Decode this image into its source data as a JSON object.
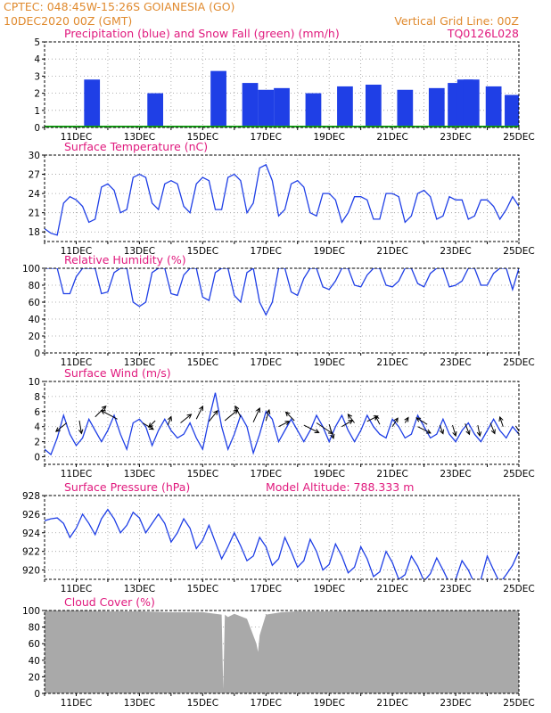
{
  "header": {
    "source_loc": "CPTEC:   048:45W-15:26S   GOIANESIA (GO)",
    "init": "10DEC2020 00Z (GMT)",
    "grid_note": "Vertical Grid Line: 00Z",
    "code": "TQ0126L028"
  },
  "colors": {
    "header": "#e08a2e",
    "title": "#e0197d",
    "series": "#1f3fe6",
    "snow": "#13a313",
    "cloud": "#a9a9a9",
    "arrow": "#000000"
  },
  "x_ticks": [
    "11DEC",
    "13DEC",
    "15DEC",
    "17DEC",
    "19DEC",
    "21DEC",
    "23DEC",
    "25DEC"
  ],
  "chart_data": [
    {
      "id": "precip",
      "type": "bar",
      "title": "Precipitation (blue) and Snow Fall (green) (mm/h)",
      "ylim": [
        0,
        5
      ],
      "yticks": [
        0,
        1,
        2,
        3,
        4,
        5
      ],
      "xlim": [
        10,
        25
      ],
      "x": [
        11.5,
        13.5,
        15.5,
        16.5,
        17.0,
        17.5,
        18.5,
        19.5,
        20.4,
        21.4,
        22.4,
        23.0,
        23.3,
        23.5,
        24.2,
        24.8
      ],
      "series": [
        {
          "name": "Precipitation",
          "values": [
            2.8,
            2.0,
            3.3,
            2.6,
            2.2,
            2.3,
            2.0,
            2.4,
            2.5,
            2.2,
            2.3,
            2.6,
            2.8,
            2.8,
            2.4,
            1.9
          ]
        },
        {
          "name": "Snow Fall",
          "values": [
            0,
            0,
            0,
            0,
            0,
            0,
            0,
            0,
            0,
            0,
            0,
            0,
            0,
            0,
            0,
            0
          ]
        }
      ]
    },
    {
      "id": "temp",
      "type": "line",
      "title": "Surface Temperature (nC)",
      "ylim": [
        16.5,
        30
      ],
      "yticks": [
        18,
        21,
        24,
        27,
        30
      ],
      "xlim": [
        10,
        25
      ],
      "x": [
        10.0,
        10.2,
        10.4,
        10.6,
        10.8,
        11.0,
        11.2,
        11.4,
        11.6,
        11.8,
        12.0,
        12.2,
        12.4,
        12.6,
        12.8,
        13.0,
        13.2,
        13.4,
        13.6,
        13.8,
        14.0,
        14.2,
        14.4,
        14.6,
        14.8,
        15.0,
        15.2,
        15.4,
        15.6,
        15.8,
        16.0,
        16.2,
        16.4,
        16.6,
        16.8,
        17.0,
        17.2,
        17.4,
        17.6,
        17.8,
        18.0,
        18.2,
        18.4,
        18.6,
        18.8,
        19.0,
        19.2,
        19.4,
        19.6,
        19.8,
        20.0,
        20.2,
        20.4,
        20.6,
        20.8,
        21.0,
        21.2,
        21.4,
        21.6,
        21.8,
        22.0,
        22.2,
        22.4,
        22.6,
        22.8,
        23.0,
        23.2,
        23.4,
        23.6,
        23.8,
        24.0,
        24.2,
        24.4,
        24.6,
        24.8,
        25.0
      ],
      "series": [
        {
          "name": "",
          "values": [
            18.5,
            17.8,
            17.5,
            22.5,
            23.5,
            23.0,
            22.0,
            19.5,
            20.0,
            25.0,
            25.5,
            24.5,
            21.0,
            21.5,
            26.5,
            27.0,
            26.5,
            22.5,
            21.5,
            25.5,
            26.0,
            25.5,
            22.0,
            21.0,
            25.5,
            26.5,
            26.0,
            21.5,
            21.5,
            26.5,
            27.0,
            26.0,
            21.0,
            22.5,
            28.0,
            28.5,
            26.0,
            20.5,
            21.5,
            25.5,
            26.0,
            25.0,
            21.0,
            20.5,
            24.0,
            24.0,
            23.0,
            19.5,
            21.0,
            23.5,
            23.5,
            23.0,
            20.0,
            20.0,
            24.0,
            24.0,
            23.5,
            19.5,
            20.5,
            24.0,
            24.5,
            23.5,
            20.0,
            20.5,
            23.5,
            23.0,
            23.0,
            20.0,
            20.5,
            23.0,
            23.0,
            22.0,
            20.0,
            21.5,
            23.5,
            22.0
          ]
        }
      ]
    },
    {
      "id": "rh",
      "type": "line",
      "title": "Relative Humidity (%)",
      "ylim": [
        0,
        100
      ],
      "yticks": [
        0,
        20,
        40,
        60,
        80,
        100
      ],
      "xlim": [
        10,
        25
      ],
      "x": [
        10.0,
        10.2,
        10.4,
        10.6,
        10.8,
        11.0,
        11.2,
        11.4,
        11.6,
        11.8,
        12.0,
        12.2,
        12.4,
        12.6,
        12.8,
        13.0,
        13.2,
        13.4,
        13.6,
        13.8,
        14.0,
        14.2,
        14.4,
        14.6,
        14.8,
        15.0,
        15.2,
        15.4,
        15.6,
        15.8,
        16.0,
        16.2,
        16.4,
        16.6,
        16.8,
        17.0,
        17.2,
        17.4,
        17.6,
        17.8,
        18.0,
        18.2,
        18.4,
        18.6,
        18.8,
        19.0,
        19.2,
        19.4,
        19.6,
        19.8,
        20.0,
        20.2,
        20.4,
        20.6,
        20.8,
        21.0,
        21.2,
        21.4,
        21.6,
        21.8,
        22.0,
        22.2,
        22.4,
        22.6,
        22.8,
        23.0,
        23.2,
        23.4,
        23.6,
        23.8,
        24.0,
        24.2,
        24.4,
        24.6,
        24.8,
        25.0
      ],
      "series": [
        {
          "name": "",
          "values": [
            100,
            100,
            100,
            70,
            70,
            90,
            100,
            100,
            100,
            70,
            72,
            95,
            100,
            100,
            60,
            55,
            60,
            95,
            100,
            100,
            70,
            68,
            92,
            100,
            100,
            66,
            62,
            95,
            100,
            100,
            68,
            60,
            95,
            100,
            60,
            45,
            60,
            100,
            100,
            72,
            68,
            88,
            100,
            100,
            78,
            75,
            85,
            100,
            100,
            80,
            78,
            92,
            100,
            100,
            80,
            78,
            85,
            100,
            100,
            82,
            78,
            94,
            100,
            100,
            78,
            80,
            85,
            100,
            100,
            80,
            80,
            94,
            100,
            100,
            75,
            100
          ]
        }
      ]
    },
    {
      "id": "wind",
      "type": "line",
      "title": "Surface Wind (m/s)",
      "ylim": [
        -1,
        10
      ],
      "yticks": [
        0,
        2,
        4,
        6,
        8,
        10
      ],
      "xlim": [
        10,
        25
      ],
      "x": [
        10.0,
        10.2,
        10.4,
        10.6,
        10.8,
        11.0,
        11.2,
        11.4,
        11.6,
        11.8,
        12.0,
        12.2,
        12.4,
        12.6,
        12.8,
        13.0,
        13.2,
        13.4,
        13.6,
        13.8,
        14.0,
        14.2,
        14.4,
        14.6,
        14.8,
        15.0,
        15.2,
        15.4,
        15.6,
        15.8,
        16.0,
        16.2,
        16.4,
        16.6,
        16.8,
        17.0,
        17.2,
        17.4,
        17.6,
        17.8,
        18.0,
        18.2,
        18.4,
        18.6,
        18.8,
        19.0,
        19.2,
        19.4,
        19.6,
        19.8,
        20.0,
        20.2,
        20.4,
        20.6,
        20.8,
        21.0,
        21.2,
        21.4,
        21.6,
        21.8,
        22.0,
        22.2,
        22.4,
        22.6,
        22.8,
        23.0,
        23.2,
        23.4,
        23.6,
        23.8,
        24.0,
        24.2,
        24.4,
        24.6,
        24.8,
        25.0
      ],
      "series": [
        {
          "name": "",
          "values": [
            1.0,
            0.3,
            2.5,
            5.5,
            3.0,
            1.5,
            2.5,
            5.0,
            3.5,
            2.0,
            3.5,
            5.5,
            3.0,
            1.0,
            4.5,
            5.0,
            4.0,
            1.5,
            3.5,
            5.0,
            3.5,
            2.5,
            3.0,
            4.5,
            2.5,
            1.0,
            5.0,
            8.5,
            4.0,
            1.0,
            3.0,
            5.5,
            4.0,
            0.5,
            3.0,
            6.0,
            5.0,
            2.0,
            3.5,
            5.0,
            3.5,
            2.0,
            3.5,
            5.5,
            4.0,
            2.0,
            4.0,
            5.5,
            3.5,
            2.0,
            3.5,
            5.5,
            4.0,
            3.0,
            2.5,
            5.0,
            4.0,
            2.5,
            3.0,
            5.5,
            4.0,
            2.5,
            3.0,
            5.0,
            3.0,
            2.0,
            3.5,
            4.5,
            3.0,
            2.0,
            3.5,
            5.0,
            3.5,
            2.5,
            4.0,
            3.0
          ]
        }
      ],
      "vectors": {
        "x": [
          10.7,
          11.1,
          11.6,
          12.3,
          13.1,
          13.5,
          13.9,
          14.3,
          14.8,
          15.2,
          15.7,
          16.2,
          16.6,
          17.0,
          17.4,
          17.9,
          18.2,
          18.6,
          19.0,
          19.4,
          19.8,
          20.2,
          20.6,
          21.0,
          21.4,
          21.8,
          22.1,
          22.5,
          22.9,
          23.3,
          23.7,
          24.1,
          24.5,
          24.9
        ],
        "u": [
          -1.0,
          0.2,
          1.0,
          -1.5,
          1.0,
          -0.6,
          0.3,
          1.0,
          0.6,
          0.8,
          1.2,
          -0.5,
          0.6,
          0.3,
          1.0,
          -0.8,
          1.4,
          1.5,
          0.4,
          1.0,
          -0.6,
          1.0,
          -0.4,
          0.5,
          0.3,
          1.2,
          -1.0,
          0.3,
          0.3,
          0.4,
          0.2,
          0.4,
          -0.3,
          0.5
        ],
        "v": [
          -0.8,
          -1.2,
          1.0,
          0.8,
          -0.6,
          -0.6,
          0.8,
          0.8,
          1.2,
          1.0,
          1.0,
          1.0,
          1.3,
          1.0,
          0.5,
          0.8,
          -0.7,
          -1.0,
          -1.3,
          0.6,
          0.8,
          0.5,
          0.8,
          0.8,
          0.5,
          -0.6,
          0.6,
          -0.8,
          -1.0,
          -1.0,
          -1.0,
          -1.0,
          0.9,
          -0.8
        ],
        "y": [
          4.5,
          4.8,
          5.3,
          5.0,
          4.5,
          4.8,
          4.2,
          4.5,
          5.0,
          4.7,
          4.8,
          5.3,
          4.6,
          4.8,
          4.0,
          4.8,
          4.2,
          4.5,
          4.3,
          4.0,
          4.5,
          4.7,
          4.3,
          4.0,
          4.5,
          4.0,
          4.3,
          4.2,
          4.2,
          4.4,
          4.2,
          4.5,
          4.0,
          4.1
        ]
      }
    },
    {
      "id": "pressure",
      "type": "line",
      "title": "Surface Pressure (hPa)",
      "subtitle": "Model Altitude: 788.333 m",
      "ylim": [
        919,
        928
      ],
      "yticks": [
        920,
        922,
        924,
        926,
        928
      ],
      "xlim": [
        10,
        25
      ],
      "x": [
        10.0,
        10.2,
        10.4,
        10.6,
        10.8,
        11.0,
        11.2,
        11.4,
        11.6,
        11.8,
        12.0,
        12.2,
        12.4,
        12.6,
        12.8,
        13.0,
        13.2,
        13.4,
        13.6,
        13.8,
        14.0,
        14.2,
        14.4,
        14.6,
        14.8,
        15.0,
        15.2,
        15.4,
        15.6,
        15.8,
        16.0,
        16.2,
        16.4,
        16.6,
        16.8,
        17.0,
        17.2,
        17.4,
        17.6,
        17.8,
        18.0,
        18.2,
        18.4,
        18.6,
        18.8,
        19.0,
        19.2,
        19.4,
        19.6,
        19.8,
        20.0,
        20.2,
        20.4,
        20.6,
        20.8,
        21.0,
        21.2,
        21.4,
        21.6,
        21.8,
        22.0,
        22.2,
        22.4,
        22.6,
        22.8,
        23.0,
        23.2,
        23.4,
        23.6,
        23.8,
        24.0,
        24.2,
        24.4,
        24.6,
        24.8,
        25.0
      ],
      "series": [
        {
          "name": "",
          "values": [
            925.3,
            925.5,
            925.6,
            925.0,
            923.5,
            924.5,
            926.0,
            925.0,
            923.8,
            925.5,
            926.5,
            925.5,
            924.0,
            924.8,
            926.2,
            925.6,
            924.0,
            925.0,
            926.0,
            925.0,
            923.0,
            924.0,
            925.5,
            924.5,
            922.3,
            923.2,
            924.8,
            923.0,
            921.2,
            922.5,
            924.0,
            922.6,
            921.0,
            921.5,
            923.5,
            922.5,
            920.5,
            921.2,
            923.5,
            922.0,
            920.3,
            921.0,
            923.3,
            922.0,
            920.0,
            920.6,
            922.8,
            921.5,
            919.7,
            920.3,
            922.5,
            921.2,
            919.3,
            919.8,
            922.0,
            920.8,
            919.0,
            919.5,
            921.5,
            920.4,
            918.8,
            919.6,
            921.3,
            920.0,
            918.6,
            919.0,
            921.0,
            920.0,
            918.5,
            919.0,
            921.5,
            920.0,
            918.6,
            919.5,
            920.5,
            922.0
          ]
        }
      ]
    },
    {
      "id": "cloud",
      "type": "area",
      "title": "Cloud Cover (%)",
      "ylim": [
        0,
        100
      ],
      "yticks": [
        0,
        20,
        40,
        60,
        80,
        100
      ],
      "xlim": [
        10,
        25
      ],
      "x": [
        10.0,
        11.0,
        12.0,
        13.0,
        14.0,
        15.0,
        15.6,
        15.65,
        15.7,
        15.8,
        16.0,
        16.4,
        16.7,
        16.75,
        16.8,
        17.0,
        17.5,
        18.0,
        19.0,
        20.0,
        21.0,
        22.0,
        23.0,
        24.0,
        25.0
      ],
      "series": [
        {
          "name": "",
          "values": [
            100,
            100,
            99,
            99,
            98,
            98,
            95,
            5,
            95,
            92,
            96,
            90,
            60,
            50,
            70,
            95,
            98,
            99,
            99,
            100,
            100,
            100,
            100,
            100,
            100
          ]
        }
      ]
    }
  ]
}
